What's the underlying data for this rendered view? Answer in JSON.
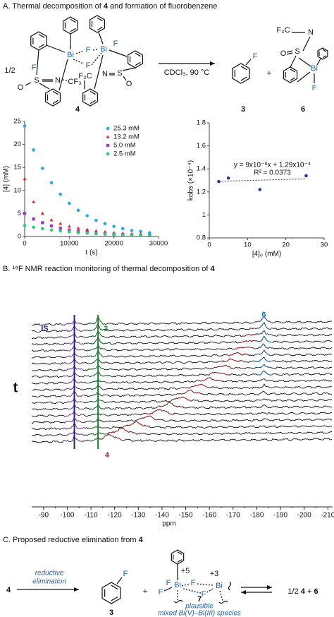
{
  "panel_a": {
    "title": [
      "A. Thermal decomposition of ",
      "4",
      " and formation of fluorobenzene"
    ],
    "coefficient": "1/2",
    "compound_4_atoms": [
      "Bi",
      "Bi",
      "F",
      "F",
      "F",
      "F",
      "S",
      "N",
      "CF₃",
      "O",
      "F₃C",
      "N",
      "S",
      "O"
    ],
    "compound_4_label": "4",
    "conditions": "CDCl₃, 90 °C",
    "compound_3_atom": "F",
    "compound_3_label": "3",
    "plus": "+",
    "compound_6_atoms": [
      "F₃C",
      "N",
      "S",
      "O",
      "Bi",
      "F"
    ],
    "compound_6_label": "6"
  },
  "chart_data": [
    {
      "type": "scatter",
      "xlabel": "t (s)",
      "ylabel": "[4] (mM)",
      "x": [
        0,
        2000,
        4000,
        6000,
        8000,
        10000,
        12000,
        14000,
        16000,
        18000,
        20000,
        22000,
        24000,
        26000,
        28000
      ],
      "series": [
        {
          "name": "25.3 mM",
          "color": "#29abe2",
          "marker": "circle",
          "values": [
            24,
            18.8,
            14.8,
            11.7,
            9.2,
            7.2,
            5.7,
            4.5,
            3.5,
            2.8,
            2.2,
            1.7,
            1.3,
            1.1,
            0.8
          ]
        },
        {
          "name": "13.2 mM",
          "color": "#e02020",
          "marker": "triangle",
          "values": [
            12.5,
            7.5,
            5,
            3.6,
            2.8,
            2.2,
            1.8,
            1.5,
            1.2,
            1,
            0.8,
            0.7,
            0.6,
            0.5,
            null
          ]
        },
        {
          "name": "5.0 mM",
          "color": "#9b3fc8",
          "marker": "square",
          "values": [
            5,
            3.8,
            3,
            2.3,
            1.8,
            1.4,
            1.1,
            0.9,
            0.7,
            0.6,
            0.5,
            0.4,
            0.3,
            0.3,
            0.2
          ]
        },
        {
          "name": "2.5 mM",
          "color": "#2ecc71",
          "marker": "circle",
          "values": [
            2.4,
            2,
            1.7,
            1.4,
            1.2,
            1,
            0.8,
            0.7,
            0.6,
            0.5,
            0.4,
            0.3,
            0.3,
            0.2,
            0.2
          ]
        }
      ],
      "xlim": [
        0,
        30000
      ],
      "xticks": [
        0,
        10000,
        20000,
        30000
      ],
      "ylim": [
        0,
        25
      ],
      "yticks": [
        0,
        5,
        10,
        15,
        20,
        25
      ],
      "legend": "upper right"
    },
    {
      "type": "scatter",
      "xlabel": "[4]₀ (mM)",
      "ylabel": "kobs (×10⁻⁴)",
      "x": [
        2.5,
        5.0,
        13.2,
        25.3
      ],
      "values": [
        1.29,
        1.32,
        1.22,
        1.34
      ],
      "color": "#1f3a93",
      "trendline": {
        "x": [
          2.5,
          25.3
        ],
        "values": [
          1.292,
          1.313
        ]
      },
      "annotations": [
        "y = 9x10⁻⁸x + 1.29x10⁻⁴",
        "R² = 0.0373"
      ],
      "xlim": [
        0,
        30
      ],
      "xticks": [
        0,
        10,
        20,
        30
      ],
      "ylim": [
        0.8,
        1.8
      ],
      "yticks": [
        0.8,
        1,
        1.2,
        1.4,
        1.6,
        1.8
      ]
    }
  ],
  "panel_b": {
    "title": [
      "B. ¹⁹F NMR reaction monitoring of thermal decomposition of ",
      "4"
    ],
    "xlim": [
      -85,
      -212
    ],
    "xticks": [
      -90,
      -100,
      -110,
      -120,
      -130,
      -140,
      -150,
      -160,
      -170,
      -180,
      -190,
      -200,
      -210
    ],
    "xlabel": "ppm",
    "time_label": "t",
    "IS": {
      "label": "IS",
      "ppm": -103,
      "color": "#2a1f7a"
    },
    "product_3": {
      "label": "3",
      "ppm": -113,
      "color": "#1e7b34"
    },
    "product_6": {
      "label": "6",
      "ppm": -183,
      "color": "#1f6fb0"
    },
    "species_4": {
      "label": "4",
      "color": "#b22222",
      "ppm": [
        -118,
        -123,
        -129,
        -134,
        -139,
        -143,
        -148,
        -152,
        -156,
        -160,
        -163,
        -166,
        -169,
        -172,
        -175,
        -177,
        -179,
        -181,
        -182
      ]
    }
  },
  "panel_c": {
    "title": [
      "C. Proposed reductive elimination from ",
      "4"
    ],
    "reactant": "4",
    "arrow_label": [
      "reductive",
      "elimination"
    ],
    "product_atom": "F",
    "product_label": "3",
    "plus": "+",
    "intermediate_atoms": [
      "+5",
      "Bi",
      "F",
      "F",
      "+3",
      "Bi",
      "F",
      "F"
    ],
    "intermediate_label": "7",
    "intermediate_note": [
      "plausible",
      "mixed Bi(V)–Bi(III) species"
    ],
    "products": [
      "1/2 ",
      "4",
      " + ",
      "6"
    ]
  }
}
